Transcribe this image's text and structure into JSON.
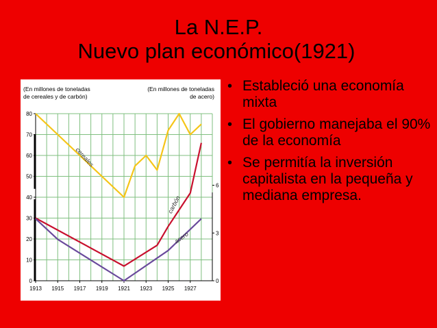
{
  "slide": {
    "title_line1": "La N.E.P.",
    "title_line2": "Nuevo plan económico(1921)"
  },
  "bullets": [
    "Estableció una economía mixta",
    "El gobierno manejaba el 90% de la economía",
    "Se permitía  la inversión capitalista en la pequeña y mediana empresa."
  ],
  "chart_data": {
    "type": "line",
    "left_axis_label_line1": "(En millones de toneladas",
    "left_axis_label_line2": "de cereales y de carbón)",
    "right_axis_label_line1": "(En millones de toneladas",
    "right_axis_label_line2": "de acero)",
    "x_ticks": [
      "1913",
      "1915",
      "1917",
      "1919",
      "1921",
      "1923",
      "1925",
      "1927"
    ],
    "xlim": [
      1913,
      1929
    ],
    "left_ticks": [
      0,
      10,
      20,
      30,
      40,
      50,
      60,
      70,
      80
    ],
    "ylim_left": [
      0,
      80
    ],
    "right_ticks": [
      0,
      3,
      6
    ],
    "ylim_right": [
      0,
      10.5
    ],
    "grid": true,
    "series": [
      {
        "name": "cereales",
        "axis": "left",
        "color": "#f5c518",
        "points": [
          [
            1913,
            80
          ],
          [
            1921,
            40
          ],
          [
            1922,
            55
          ],
          [
            1923,
            60
          ],
          [
            1924,
            53
          ],
          [
            1925,
            72
          ],
          [
            1926,
            80
          ],
          [
            1927,
            70
          ],
          [
            1928,
            75
          ]
        ]
      },
      {
        "name": "carbón",
        "axis": "left",
        "color": "#c8102e",
        "points": [
          [
            1913,
            30
          ],
          [
            1921,
            7
          ],
          [
            1924,
            17
          ],
          [
            1925,
            26
          ],
          [
            1927,
            42
          ],
          [
            1928,
            66
          ]
        ]
      },
      {
        "name": "acero",
        "axis": "right",
        "color": "#6a4a9c",
        "points": [
          [
            1913,
            3.9
          ],
          [
            1915,
            2.6
          ],
          [
            1921,
            0
          ],
          [
            1925,
            1.9
          ],
          [
            1928,
            3.9
          ]
        ]
      }
    ]
  }
}
